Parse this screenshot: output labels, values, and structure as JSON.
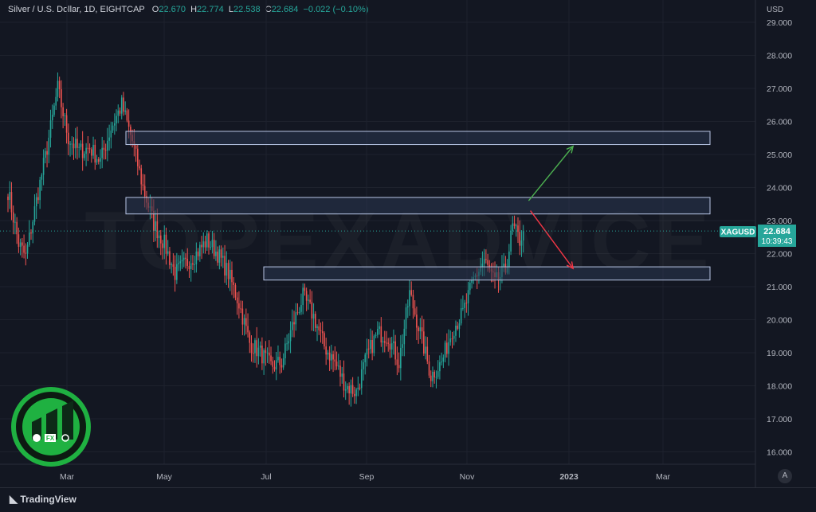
{
  "header": {
    "symbol_desc": "Silver / U.S. Dollar, 1D, EIGHTCAP",
    "open_label": "O",
    "open": "22.670",
    "high_label": "H",
    "high": "22.774",
    "low_label": "L",
    "low": "22.538",
    "close_label": "C",
    "close": "22.684",
    "change": "−0.022 (−0.10%)"
  },
  "price_axis": {
    "currency": "USD"
  },
  "price_tag": {
    "symbol": "XAGUSD",
    "price": "22.684",
    "countdown": "10:39:43"
  },
  "watermark": "TOPEXADVICE",
  "footer": {
    "brand": "TradingView",
    "auto_label": "A"
  },
  "logo": {
    "label": "FX"
  },
  "colors": {
    "up": "#26a69a",
    "down": "#ef5350",
    "zone_fill": "#2a3750",
    "zone_stroke": "#b8c6e6",
    "bg": "#131722",
    "arrow_up": "#4caf50",
    "arrow_down": "#f23645",
    "logo_green": "#1fb141"
  },
  "chart_data": {
    "type": "candlestick",
    "x_ticks": [
      "Mar",
      "May",
      "Jul",
      "Sep",
      "Nov",
      "2023",
      "Mar"
    ],
    "y_ticks": [
      "29.000",
      "28.000",
      "27.000",
      "26.000",
      "25.000",
      "24.000",
      "23.000",
      "22.000",
      "21.000",
      "20.000",
      "19.000",
      "18.000",
      "17.000",
      "16.000"
    ],
    "ylim": [
      15.6,
      29.35
    ],
    "last_price": 22.684,
    "path": [
      [
        0,
        23.9
      ],
      [
        6,
        22.3
      ],
      [
        10,
        21.9
      ],
      [
        16,
        23.6
      ],
      [
        22,
        25.2
      ],
      [
        28,
        27
      ],
      [
        34,
        25.5
      ],
      [
        40,
        25.1
      ],
      [
        46,
        25.2
      ],
      [
        52,
        24.8
      ],
      [
        58,
        25.8
      ],
      [
        64,
        26.5
      ],
      [
        70,
        25.4
      ],
      [
        76,
        24
      ],
      [
        82,
        22.9
      ],
      [
        88,
        22.3
      ],
      [
        94,
        21.4
      ],
      [
        100,
        21.7
      ],
      [
        106,
        22
      ],
      [
        112,
        22.4
      ],
      [
        118,
        22
      ],
      [
        124,
        21.4
      ],
      [
        130,
        20.5
      ],
      [
        136,
        19.3
      ],
      [
        142,
        19
      ],
      [
        148,
        18.6
      ],
      [
        154,
        18.7
      ],
      [
        160,
        19.8
      ],
      [
        166,
        20.7
      ],
      [
        172,
        20.1
      ],
      [
        178,
        19.2
      ],
      [
        184,
        18.7
      ],
      [
        190,
        18
      ],
      [
        196,
        17.8
      ],
      [
        202,
        18.9
      ],
      [
        208,
        19.6
      ],
      [
        214,
        19.5
      ],
      [
        220,
        18.7
      ],
      [
        226,
        20.8
      ],
      [
        232,
        19.6
      ],
      [
        238,
        18.3
      ],
      [
        244,
        18.7
      ],
      [
        250,
        19.7
      ],
      [
        256,
        20.2
      ],
      [
        262,
        21.2
      ],
      [
        268,
        21.8
      ],
      [
        274,
        21.1
      ],
      [
        280,
        21.5
      ],
      [
        284,
        22.8
      ],
      [
        288,
        22.4
      ],
      [
        290,
        22.684
      ]
    ],
    "zones": [
      [
        25.3,
        25.7
      ],
      [
        23.2,
        23.7
      ],
      [
        21.2,
        21.6
      ]
    ],
    "projections": [
      {
        "direction": "up",
        "from": [
          293,
          23.6
        ],
        "to": [
          318,
          25.25
        ]
      },
      {
        "direction": "down",
        "from": [
          294,
          23.3
        ],
        "to": [
          318,
          21.55
        ]
      }
    ]
  }
}
